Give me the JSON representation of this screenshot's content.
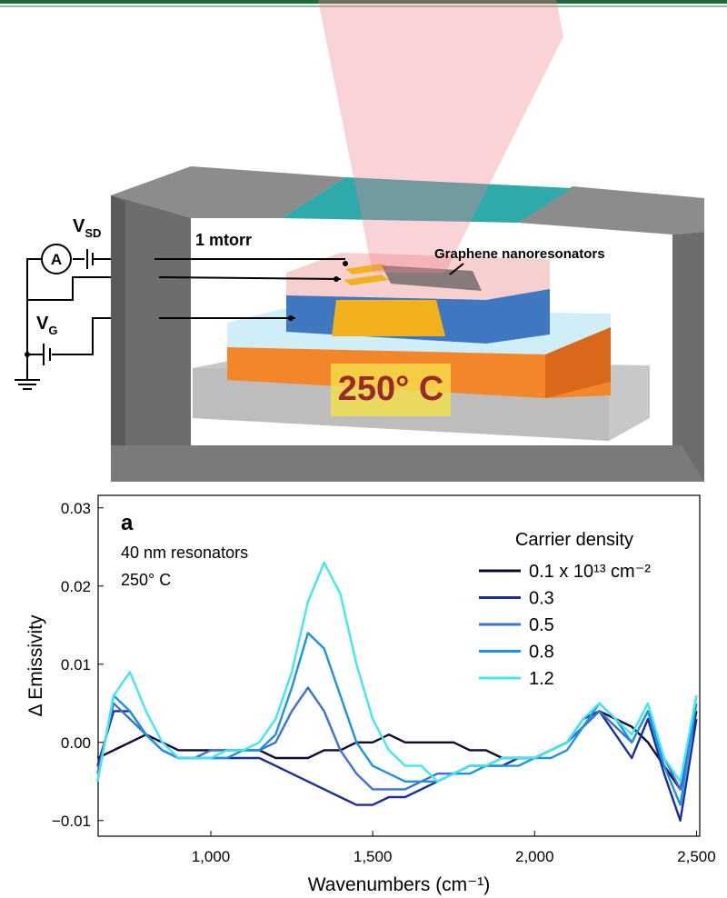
{
  "diagram": {
    "vsd": {
      "text": "V",
      "sub": "SD"
    },
    "ammeter": "A",
    "pressure": "1 mtorr",
    "device": "Graphene nanoresonators",
    "vg": {
      "text": "V",
      "sub": "G"
    },
    "temperature": "250° C"
  },
  "chart_data": {
    "type": "line",
    "panel_label": "a",
    "annotations": [
      "40 nm resonators",
      "250° C"
    ],
    "xlabel": "Wavenumbers (cm⁻¹)",
    "ylabel": "Δ Emissivity",
    "legend_title": "Carrier density",
    "x": [
      650,
      700,
      750,
      800,
      850,
      900,
      950,
      1000,
      1050,
      1100,
      1150,
      1200,
      1250,
      1300,
      1350,
      1400,
      1450,
      1500,
      1550,
      1600,
      1650,
      1700,
      1750,
      1800,
      1850,
      1900,
      1950,
      2000,
      2050,
      2100,
      2150,
      2200,
      2250,
      2300,
      2350,
      2400,
      2450,
      2500
    ],
    "series": [
      {
        "name": "0.1 x 10¹³ cm⁻²",
        "color": "#0b0b30",
        "values": [
          -0.002,
          -0.001,
          0.0,
          0.001,
          0.0,
          -0.001,
          -0.001,
          -0.001,
          -0.001,
          -0.001,
          -0.001,
          -0.002,
          -0.002,
          -0.002,
          -0.001,
          -0.001,
          0.0,
          0.0,
          0.001,
          0.0,
          0.0,
          0.0,
          0.0,
          -0.001,
          -0.001,
          -0.002,
          -0.002,
          -0.002,
          -0.001,
          0.0,
          0.002,
          0.004,
          0.003,
          0.002,
          0.0,
          -0.003,
          -0.006,
          0.004
        ]
      },
      {
        "name": "0.3",
        "color": "#1c2e9c",
        "values": [
          -0.003,
          0.004,
          0.004,
          0.001,
          -0.001,
          -0.002,
          -0.002,
          -0.002,
          -0.002,
          -0.002,
          -0.002,
          -0.003,
          -0.004,
          -0.005,
          -0.006,
          -0.007,
          -0.008,
          -0.008,
          -0.007,
          -0.007,
          -0.006,
          -0.005,
          -0.004,
          -0.003,
          -0.003,
          -0.003,
          -0.002,
          -0.002,
          -0.001,
          0.0,
          0.003,
          0.004,
          0.001,
          -0.002,
          0.003,
          -0.004,
          -0.01,
          0.003
        ]
      },
      {
        "name": "0.5",
        "color": "#3c70d2",
        "values": [
          -0.004,
          0.005,
          0.003,
          0.001,
          -0.001,
          -0.002,
          -0.002,
          -0.001,
          -0.001,
          -0.001,
          -0.001,
          0.0,
          0.004,
          0.007,
          0.004,
          -0.001,
          -0.004,
          -0.006,
          -0.006,
          -0.006,
          -0.005,
          -0.004,
          -0.004,
          -0.003,
          -0.003,
          -0.002,
          -0.002,
          -0.002,
          -0.001,
          0.0,
          0.002,
          0.004,
          0.002,
          0.0,
          0.004,
          -0.002,
          -0.006,
          0.006
        ]
      },
      {
        "name": "0.8",
        "color": "#1e92e2",
        "values": [
          -0.005,
          0.006,
          0.004,
          0.001,
          -0.001,
          -0.002,
          -0.002,
          -0.002,
          -0.002,
          -0.001,
          -0.001,
          0.001,
          0.007,
          0.014,
          0.012,
          0.006,
          0.0,
          -0.003,
          -0.004,
          -0.005,
          -0.005,
          -0.005,
          -0.004,
          -0.004,
          -0.003,
          -0.003,
          -0.003,
          -0.002,
          -0.002,
          -0.001,
          0.002,
          0.005,
          0.003,
          0.0,
          0.004,
          -0.003,
          -0.008,
          0.005
        ]
      },
      {
        "name": "1.2",
        "color": "#42e6f0",
        "values": [
          -0.005,
          0.006,
          0.009,
          0.004,
          0.0,
          -0.002,
          -0.002,
          -0.002,
          -0.001,
          -0.001,
          0.0,
          0.003,
          0.009,
          0.018,
          0.023,
          0.019,
          0.01,
          0.003,
          -0.001,
          -0.003,
          -0.003,
          -0.005,
          -0.004,
          -0.003,
          -0.003,
          -0.002,
          -0.002,
          -0.002,
          -0.001,
          0.0,
          0.003,
          0.005,
          0.003,
          0.001,
          0.005,
          -0.002,
          -0.005,
          0.006
        ]
      }
    ],
    "xlim": [
      652,
      2510
    ],
    "ylim": [
      -0.012,
      0.0316
    ],
    "xticks": [
      {
        "value": 1000,
        "label": "1,000"
      },
      {
        "value": 1500,
        "label": "1,500"
      },
      {
        "value": 2000,
        "label": "2,000"
      },
      {
        "value": 2500,
        "label": "2,500"
      }
    ],
    "yticks": [
      0.03,
      0.02,
      0.01,
      {
        "value": 0,
        "label": "0.00"
      },
      {
        "value": -0.01,
        "label": "−0.01"
      }
    ]
  }
}
